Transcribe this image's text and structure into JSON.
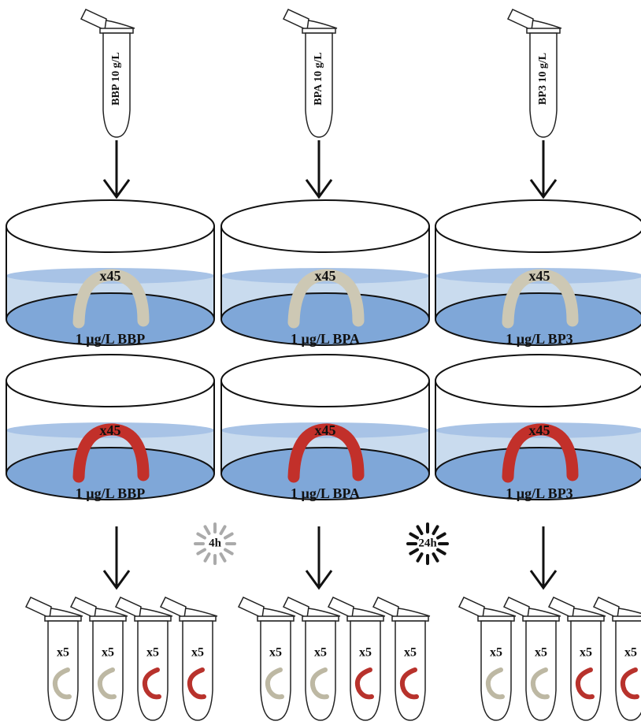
{
  "stock_tubes": [
    {
      "label": "BBP 10 g/L"
    },
    {
      "label": "BPA 10 g/L"
    },
    {
      "label": "BP3 10 g/L"
    }
  ],
  "dishes": [
    {
      "count": "x45",
      "label": "1 µg/L BBP"
    },
    {
      "count": "x45",
      "label": "1 µg/L BPA"
    },
    {
      "count": "x45",
      "label": "1 µg/L BP3"
    },
    {
      "count": "x45",
      "label": "1 µg/L BBP"
    },
    {
      "count": "x45",
      "label": "1 µg/L BPA"
    },
    {
      "count": "x45",
      "label": "1 µg/L BP3"
    }
  ],
  "timers": [
    {
      "label": "4h"
    },
    {
      "label": "24h"
    }
  ],
  "sample_groups": [
    {
      "tubes": [
        "x5",
        "x5",
        "x5",
        "x5"
      ]
    },
    {
      "tubes": [
        "x5",
        "x5",
        "x5",
        "x5"
      ]
    },
    {
      "tubes": [
        "x5",
        "x5",
        "x5",
        "x5"
      ]
    }
  ]
}
